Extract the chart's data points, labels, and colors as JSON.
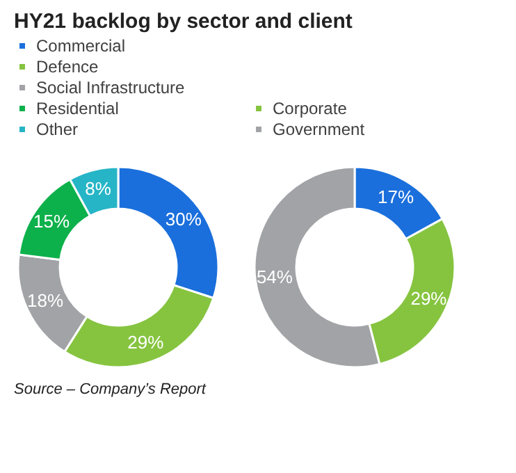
{
  "chart_data": [
    {
      "type": "donut",
      "title": "HY21  backlog by sector and client",
      "categories": [
        "Commercial",
        "Defence",
        "Social Infrastructure",
        "Residential",
        "Other"
      ],
      "values": [
        30,
        29,
        18,
        15,
        8
      ],
      "colors": [
        "#1a6fdc",
        "#86c440",
        "#a2a3a6",
        "#0db14b",
        "#26b5c6"
      ],
      "value_labels": [
        "30%",
        "29%",
        "18%",
        "15%",
        "8%"
      ],
      "legend": "top",
      "annotations": [
        "Source – Company’s Report"
      ]
    },
    {
      "type": "donut",
      "categories": [
        null,
        "Corporate",
        "Government"
      ],
      "values": [
        17,
        29,
        54
      ],
      "colors": [
        "#1a6fdc",
        "#86c440",
        "#a2a3a6"
      ],
      "value_labels": [
        "17%",
        "29%",
        "54%"
      ],
      "legend": "top"
    }
  ]
}
